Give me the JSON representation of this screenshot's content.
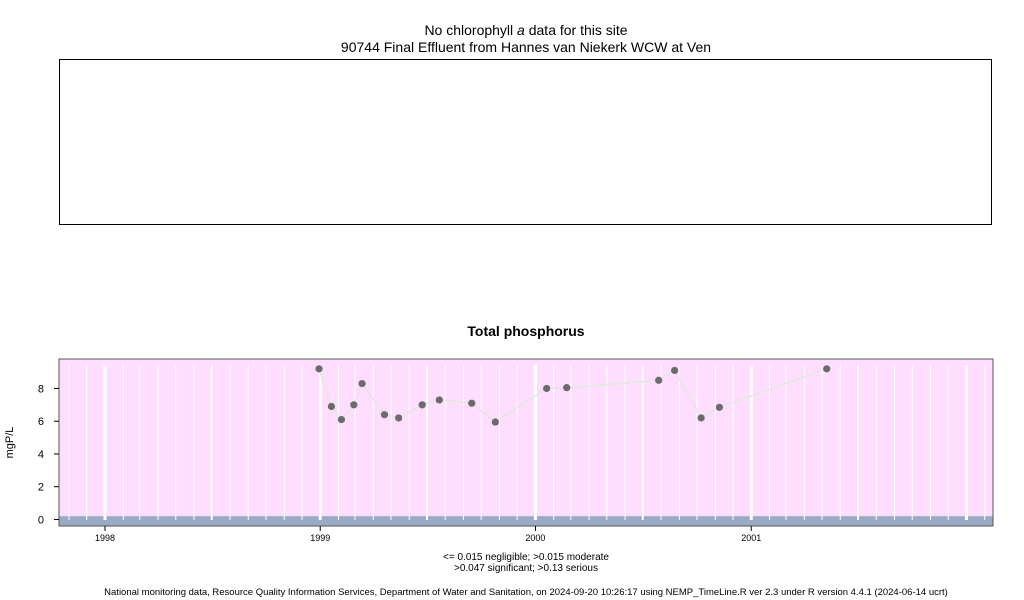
{
  "header": {
    "no_data_prefix": "No chlorophyll ",
    "no_data_italic": "a",
    "no_data_suffix": " data for this site",
    "site_title": "90744 Final Effluent from Hannes van Niekerk WCW at Ven"
  },
  "legend": {
    "line1": "<= 0.015 negligible; >0.015 moderate",
    "line2": ">0.047 significant; >0.13 serious"
  },
  "footer": {
    "text": "National monitoring data, Resource Quality Information Services, Department of Water and Sanitation, on 2024-09-20 10:26:17 using NEMP_TimeLine.R ver 2.3 under R version 4.4.1 (2024-06-14 ucrt)"
  },
  "colors": {
    "serious_band": "#ffddff",
    "negligible_band": "#9aaac4",
    "grid": "#ffffff",
    "point": "#6b6b6b",
    "line": "#e6e6e6"
  },
  "chart_data": {
    "type": "line",
    "title": "Total phosphorus",
    "xlabel": "",
    "ylabel": "mgP/L",
    "xlim": [
      "1997-10-15",
      "2002-02-15"
    ],
    "ylim": [
      -0.4,
      9.8
    ],
    "x_ticks": [
      "1998",
      "1999",
      "2000",
      "2001"
    ],
    "y_ticks": [
      0,
      2,
      4,
      6,
      8
    ],
    "grid": true,
    "series": [
      {
        "x": [
          "1998-12-30",
          "1999-01-20",
          "1999-02-06",
          "1999-02-27",
          "1999-03-13",
          "1999-04-20",
          "1999-05-14",
          "1999-06-23",
          "1999-07-22",
          "1999-09-15",
          "1999-10-25",
          "2000-01-20",
          "2000-02-23",
          "2000-07-28",
          "2000-08-24",
          "2000-10-08",
          "2000-11-08",
          "2001-05-09"
        ],
        "values": [
          9.2,
          6.9,
          6.1,
          7.0,
          8.3,
          6.4,
          6.2,
          7.0,
          7.3,
          7.1,
          5.95,
          8.0,
          8.05,
          8.5,
          9.1,
          6.2,
          6.85,
          9.2
        ]
      }
    ]
  }
}
